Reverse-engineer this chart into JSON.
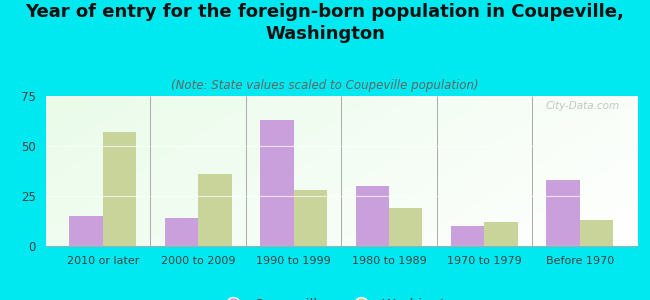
{
  "title": "Year of entry for the foreign-born population in Coupeville,\nWashington",
  "subtitle": "(Note: State values scaled to Coupeville population)",
  "categories": [
    "2010 or later",
    "2000 to 2009",
    "1990 to 1999",
    "1980 to 1989",
    "1970 to 1979",
    "Before 1970"
  ],
  "coupeville_values": [
    15,
    14,
    63,
    30,
    10,
    33
  ],
  "washington_values": [
    57,
    36,
    28,
    19,
    12,
    13
  ],
  "coupeville_color": "#c9a0dc",
  "washington_color": "#c8d49a",
  "background_color": "#00e8f0",
  "ylim": [
    0,
    75
  ],
  "yticks": [
    0,
    25,
    50,
    75
  ],
  "title_fontsize": 13,
  "subtitle_fontsize": 8.5,
  "legend_fontsize": 10,
  "watermark_text": "City-Data.com",
  "bar_width": 0.35
}
